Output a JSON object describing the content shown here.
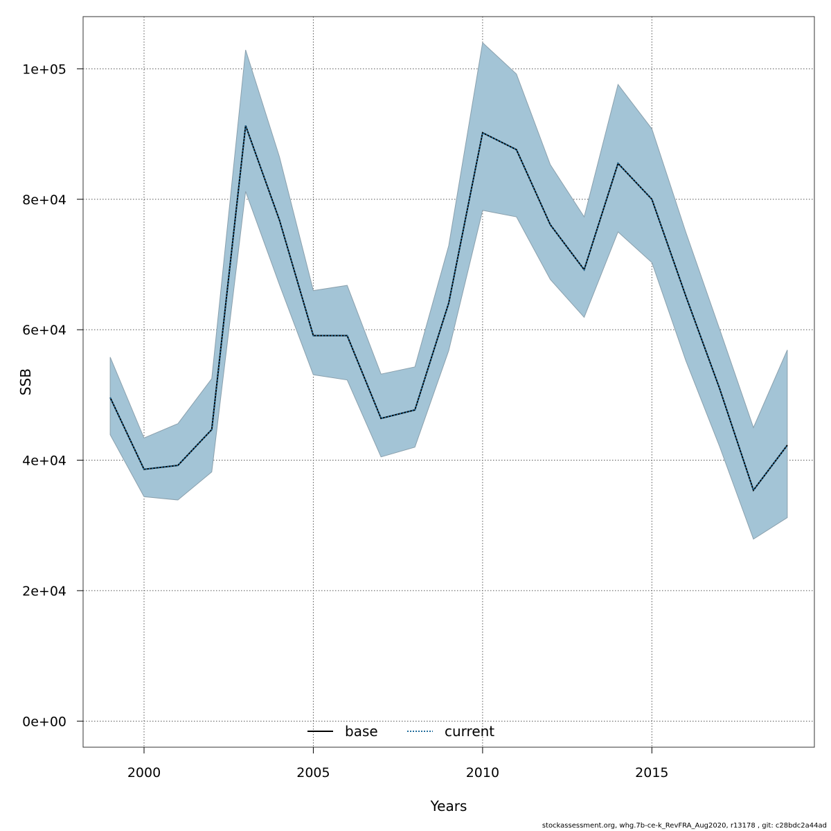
{
  "chart_data": {
    "type": "line",
    "xlabel": "Years",
    "ylabel": "SSB",
    "xlim": [
      1998.2,
      2019.8
    ],
    "ylim": [
      -4000,
      108000
    ],
    "x_ticks": [
      2000,
      2005,
      2010,
      2015
    ],
    "x_tick_labels": [
      "2000",
      "2005",
      "2010",
      "2015"
    ],
    "y_ticks": [
      0,
      20000,
      40000,
      60000,
      80000,
      100000
    ],
    "y_tick_labels": [
      "0e+00",
      "2e+04",
      "4e+04",
      "6e+04",
      "8e+04",
      "1e+05"
    ],
    "grid": true,
    "band_color": "#a3c4d6",
    "band_edge_color": "#8aa0ad",
    "years": [
      1999,
      2000,
      2001,
      2002,
      2003,
      2004,
      2005,
      2006,
      2007,
      2008,
      2009,
      2010,
      2011,
      2012,
      2013,
      2014,
      2015,
      2016,
      2017,
      2018,
      2019
    ],
    "band_upper": [
      55800,
      43400,
      45600,
      52500,
      102900,
      86500,
      66000,
      66800,
      53200,
      54300,
      72900,
      104000,
      99200,
      85300,
      77300,
      97600,
      90800,
      75000,
      60100,
      45000,
      56900
    ],
    "band_lower": [
      43900,
      34400,
      33900,
      38200,
      81200,
      66900,
      53100,
      52300,
      40500,
      42000,
      56800,
      78300,
      77300,
      67700,
      61900,
      75000,
      70300,
      55300,
      42100,
      27900,
      31200
    ],
    "series": [
      {
        "name": "base",
        "line_style": "solid",
        "color": "#000000",
        "values": [
          49600,
          38600,
          39200,
          44700,
          91300,
          76800,
          59100,
          59100,
          46400,
          47700,
          64100,
          90200,
          87600,
          76100,
          69200,
          85500,
          80000,
          65200,
          51000,
          35400,
          42300
        ]
      },
      {
        "name": "current",
        "line_style": "dotted",
        "color": "#1f6b9a",
        "values": [
          49600,
          38600,
          39200,
          44700,
          91300,
          76800,
          59100,
          59100,
          46400,
          47700,
          64100,
          90200,
          87600,
          76100,
          69200,
          85500,
          80000,
          65200,
          51000,
          35400,
          42300
        ]
      }
    ],
    "legend": {
      "placement": "bottom-center",
      "entries": [
        "base",
        "current"
      ]
    }
  },
  "footer": "stockassessment.org, whg.7b-ce-k_RevFRA_Aug2020, r13178 , git: c28bdc2a44ad"
}
